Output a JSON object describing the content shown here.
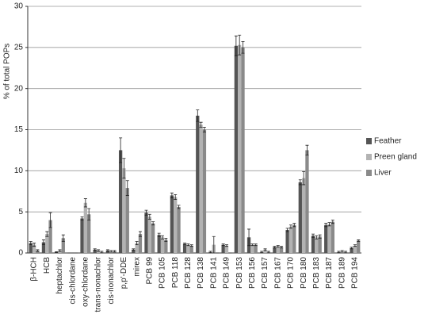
{
  "chart_data": {
    "type": "bar",
    "ylabel": "% of total POPs",
    "categories": [
      "β-HCH",
      "HCB",
      "heptachlor",
      "cis-chlordane",
      "oxy-chlordane",
      "trans-nonachlor",
      "cis-nonachlor",
      "p,p'-DDE",
      "mirex",
      "PCB 99",
      "PCB 105",
      "PCB 118",
      "PCB 128",
      "PCB 138",
      "PCB 141",
      "PCB 149",
      "PCB 153",
      "PCB 156",
      "PCB 157",
      "PCB 167",
      "PCB 170",
      "PCB 180",
      "PCB 183",
      "PCB 187",
      "PCB 189",
      "PCB 194"
    ],
    "series": [
      {
        "name": "Feather",
        "color": "#555555",
        "values": [
          1.2,
          1.3,
          0.1,
          0,
          4.2,
          0.4,
          0.3,
          12.5,
          0.4,
          4.9,
          2.2,
          7.0,
          1.1,
          16.7,
          0.1,
          1.0,
          25.2,
          1.9,
          0.1,
          0.7,
          2.8,
          8.6,
          2.1,
          3.4,
          0.1,
          0.6
        ],
        "errors": [
          0.2,
          0.3,
          0.05,
          0,
          0.2,
          0.1,
          0.1,
          1.5,
          0.1,
          0.3,
          0.2,
          0.3,
          0.1,
          0.7,
          0.1,
          0.1,
          1.2,
          1.0,
          0.1,
          0.1,
          0.2,
          0.3,
          0.2,
          0.2,
          0.1,
          0.1
        ]
      },
      {
        "name": "Preen gland",
        "color": "#b3b3b3",
        "values": [
          1.0,
          2.3,
          0.3,
          0,
          6.1,
          0.3,
          0.2,
          10.3,
          1.2,
          4.4,
          1.9,
          6.8,
          1.0,
          15.6,
          1.0,
          0.9,
          25.3,
          1.0,
          0.4,
          0.8,
          3.2,
          9.1,
          1.9,
          3.5,
          0.2,
          0.9
        ],
        "errors": [
          0.2,
          0.3,
          0.1,
          0,
          0.5,
          0.1,
          0.1,
          1.2,
          0.2,
          0.3,
          0.2,
          0.3,
          0.1,
          0.3,
          1.0,
          0.1,
          1.2,
          0.1,
          0.1,
          0.1,
          0.2,
          0.8,
          0.2,
          0.2,
          0.1,
          0.1
        ]
      },
      {
        "name": "Liver",
        "color": "#8a8a8a",
        "values": [
          0.3,
          4.0,
          1.8,
          0,
          4.7,
          0.1,
          0.2,
          7.9,
          2.3,
          3.6,
          1.6,
          5.6,
          0.9,
          15.0,
          0,
          0,
          25.0,
          1.0,
          0.1,
          0.7,
          3.4,
          12.5,
          2.0,
          3.8,
          0.1,
          1.5
        ],
        "errors": [
          0.1,
          0.9,
          0.4,
          0,
          0.7,
          0.1,
          0.1,
          0.9,
          0.3,
          0.2,
          0.2,
          0.2,
          0.1,
          0.3,
          0,
          0,
          0.7,
          0.1,
          0.1,
          0.1,
          0.2,
          0.6,
          0.2,
          0.2,
          0.1,
          0.1
        ]
      }
    ],
    "ylim": [
      0,
      30
    ],
    "yticks": [
      0,
      5,
      10,
      15,
      20,
      25,
      30
    ],
    "grid": true,
    "legend": "right"
  }
}
